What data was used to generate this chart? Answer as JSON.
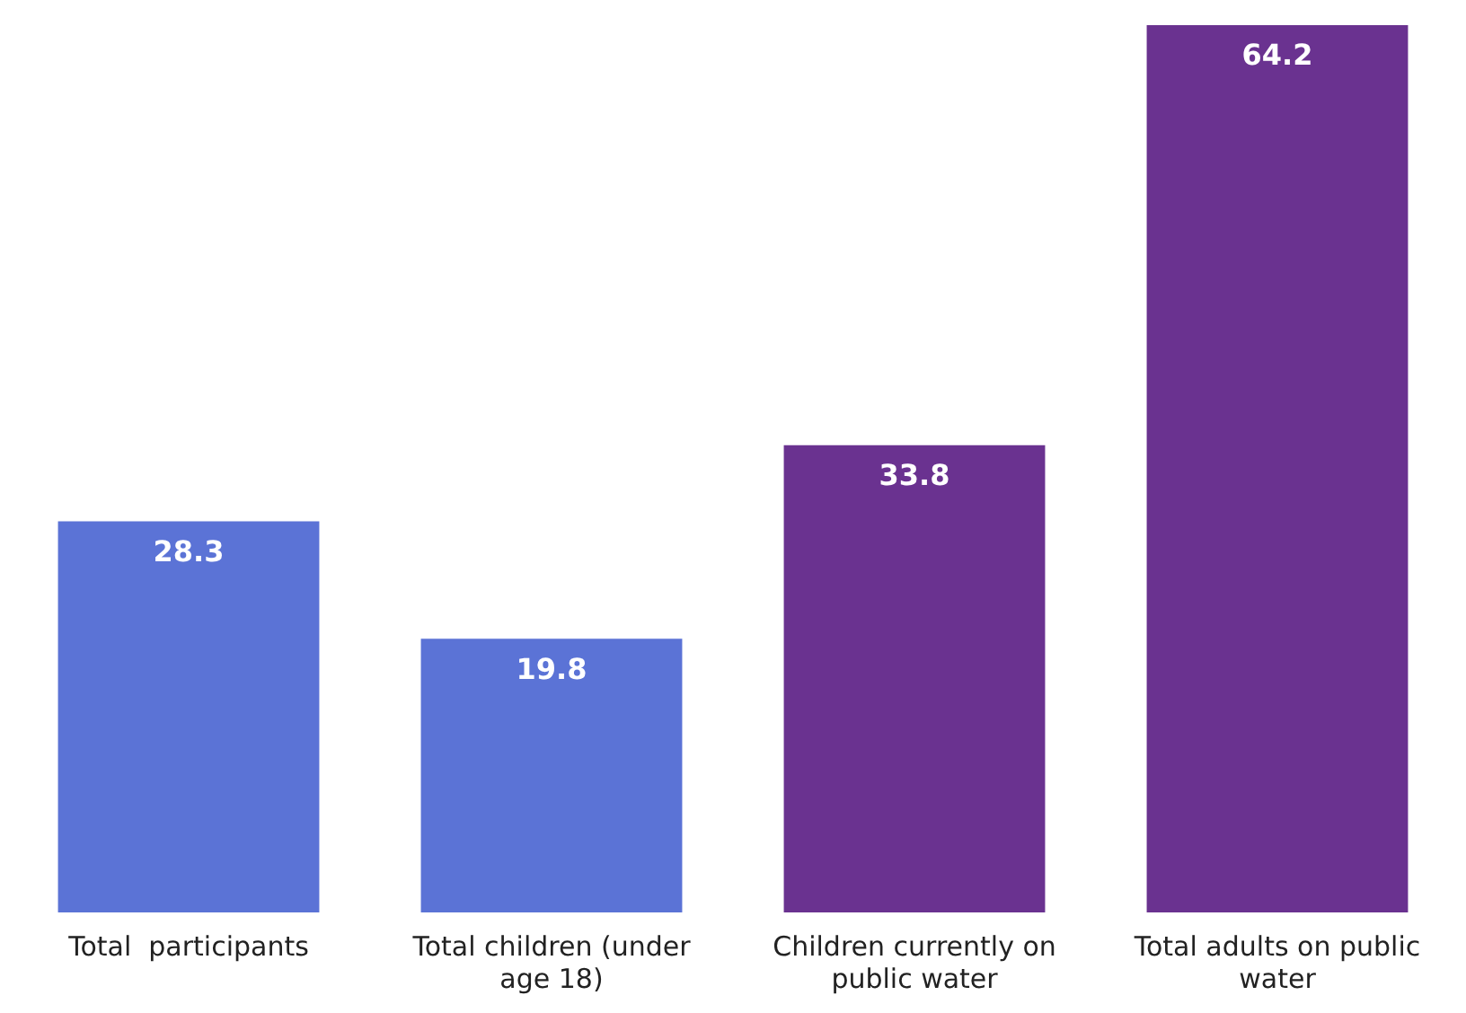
{
  "chart_data": {
    "type": "bar",
    "categories": [
      "Total  participants",
      "Total children (under age 18)",
      "Children currently on public water",
      "Total adults on public water"
    ],
    "values": [
      28.3,
      19.8,
      33.8,
      64.2
    ],
    "colors": [
      "#5b73d6",
      "#5b73d6",
      "#6a3290",
      "#6a3290"
    ],
    "data_labels": true,
    "grid": false,
    "legend": false
  }
}
